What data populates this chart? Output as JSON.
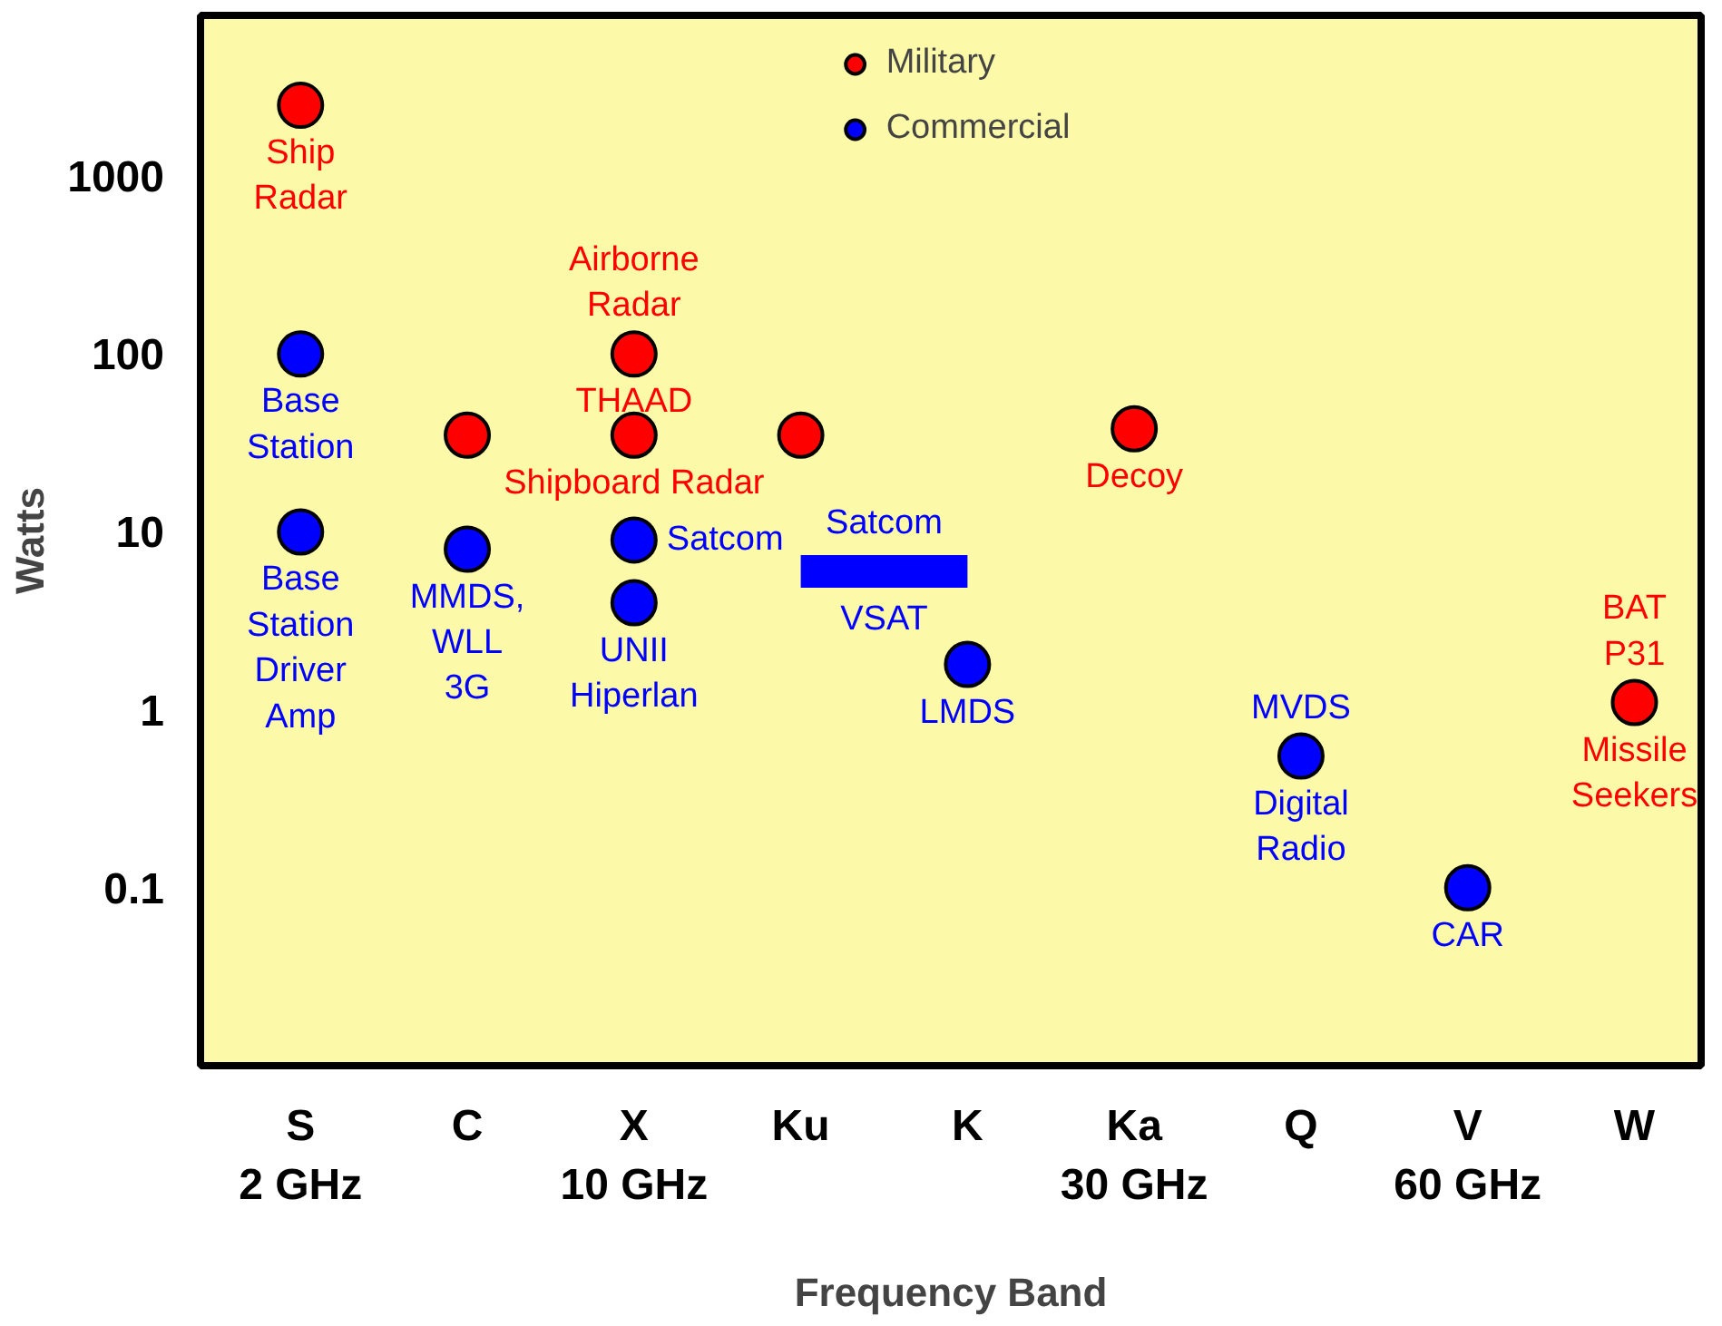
{
  "chart_data": {
    "type": "scatter",
    "xlabel": "Frequency Band",
    "ylabel": "Watts",
    "categories": [
      "S\n2 GHz",
      "C",
      "X\n10 GHz",
      "Ku",
      "K",
      "Ka\n30 GHz",
      "Q",
      "V\n60 GHz",
      "W"
    ],
    "ylim": [
      0.01,
      8000
    ],
    "log": "y",
    "grid": false,
    "legend": "top",
    "marker": "circle",
    "yticks": [
      0.1,
      1,
      10,
      100,
      1000
    ],
    "series": [
      {
        "name": "Military",
        "color": "#ff0000",
        "x": [
          "S\n2 GHz",
          "C",
          "X\n10 GHz",
          "X\n10 GHz",
          "Ku",
          "Ka\n30 GHz",
          "W"
        ],
        "values": [
          2500,
          35,
          100,
          35,
          35,
          38,
          1.1
        ]
      },
      {
        "name": "Commercial",
        "color": "#0000ff",
        "x": [
          "S\n2 GHz",
          "S\n2 GHz",
          "C",
          "X\n10 GHz",
          "X\n10 GHz",
          "K",
          "Q",
          "V\n60 GHz"
        ],
        "values": [
          100,
          10,
          8,
          9,
          4,
          1.8,
          0.55,
          0.1
        ]
      },
      {
        "type": "line",
        "color": "#0000ff",
        "marker": "none",
        "x": [
          "Ku",
          "K"
        ],
        "values": [
          6,
          6
        ]
      }
    ],
    "annotations": [
      {
        "text": "Ship\nRadar",
        "x": "S\n2 GHz",
        "y": 2500
      },
      {
        "text": "Base\nStation",
        "x": "S\n2 GHz",
        "y": 100
      },
      {
        "text": "Base\nStation\nDriver\nAmp",
        "x": "S\n2 GHz",
        "y": 10
      },
      {
        "text": "Airborne\nRadar",
        "x": "X\n10 GHz",
        "y": 100
      },
      {
        "text": "THAAD",
        "x": "X\n10 GHz",
        "y": 100
      },
      {
        "text": "Shipboard Radar",
        "x": "X\n10 GHz",
        "y": 35
      },
      {
        "text": "MMDS,\nWLL\n3G",
        "x": "C",
        "y": 8
      },
      {
        "text": "Satcom",
        "x": "X\n10 GHz",
        "y": 9
      },
      {
        "text": "UNII\nHiperlan",
        "x": "X\n10 GHz",
        "y": 4
      },
      {
        "text": "Satcom",
        "x": "Ku",
        "y": 6
      },
      {
        "text": "VSAT",
        "x": "Ku",
        "y": 6
      },
      {
        "text": "LMDS",
        "x": "K",
        "y": 1.8
      },
      {
        "text": "Decoy",
        "x": "Ka\n30 GHz",
        "y": 38
      },
      {
        "text": "MVDS",
        "x": "Q",
        "y": 0.55
      },
      {
        "text": "Digital\nRadio",
        "x": "Q",
        "y": 0.55
      },
      {
        "text": "CAR",
        "x": "V\n60 GHz",
        "y": 0.1
      },
      {
        "text": "BAT\nP31",
        "x": "W",
        "y": 1.1
      },
      {
        "text": "Missile\nSeekers",
        "x": "W",
        "y": 1.1
      }
    ]
  }
}
